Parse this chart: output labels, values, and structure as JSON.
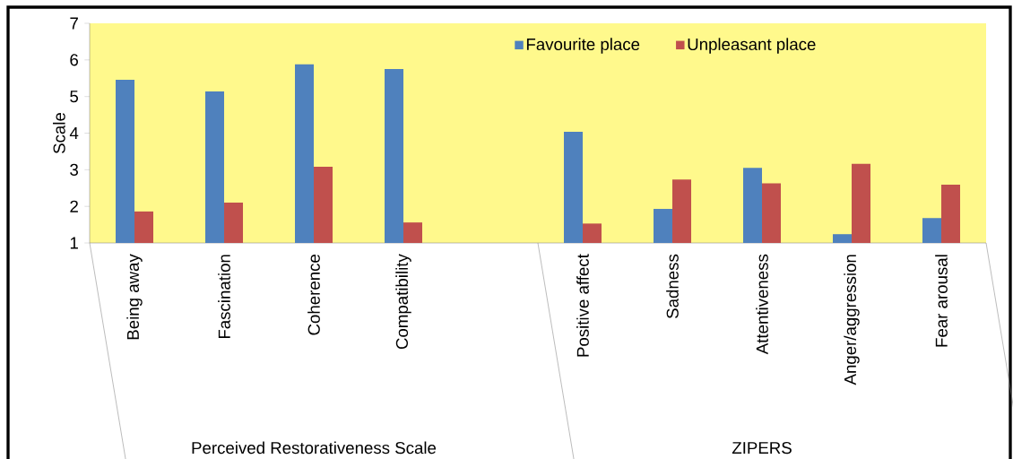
{
  "chart_data": {
    "type": "bar",
    "ylabel": "Scale",
    "categories": [
      "Being away",
      "Fascination",
      "Coherence",
      "Compatibility",
      null,
      "Positive affect",
      "Sadness",
      "Attentiveness",
      "Anger/aggression",
      "Fear arousal"
    ],
    "series": [
      {
        "name": "Favourite place",
        "color": "#4f81bd",
        "values": [
          5.46,
          5.14,
          5.88,
          5.75,
          null,
          4.04,
          1.93,
          3.05,
          1.24,
          1.68
        ]
      },
      {
        "name": "Unpleasant place",
        "color": "#c0504d",
        "values": [
          1.86,
          2.1,
          3.08,
          1.56,
          null,
          1.53,
          2.73,
          2.63,
          3.16,
          2.59
        ]
      }
    ],
    "ylim": [
      1,
      7
    ],
    "yticks": [
      1,
      2,
      3,
      4,
      5,
      6,
      7
    ],
    "legend": "top right",
    "annotations": [
      "Perceived Restorativeness Scale",
      "ZIPERS"
    ]
  }
}
